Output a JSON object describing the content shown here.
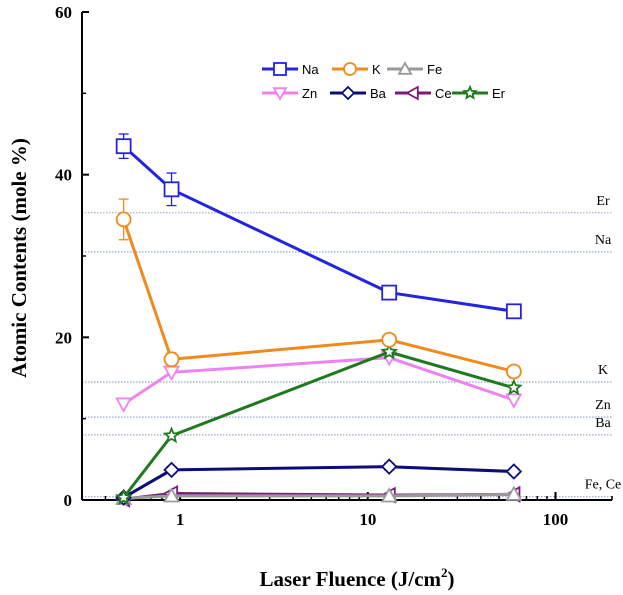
{
  "chart_data": {
    "type": "line",
    "xlabel": "Laser Fluence (J/cm",
    "xlabel_sup": "2",
    "xlabel_close": ")",
    "ylabel": "Atomic Contents (mole %)",
    "xscale": "log",
    "xlim": [
      0.3,
      200
    ],
    "ylim": [
      0,
      60
    ],
    "x_ticks": [
      {
        "value": 1,
        "label": "1"
      },
      {
        "value": 10,
        "label": "10"
      },
      {
        "value": 100,
        "label": "100"
      }
    ],
    "y_ticks": [
      {
        "value": 0,
        "label": "0"
      },
      {
        "value": 20,
        "label": "20"
      },
      {
        "value": 40,
        "label": "40"
      },
      {
        "value": 60,
        "label": "60"
      }
    ],
    "legend_position": "top-right",
    "series": [
      {
        "name": "Na",
        "color": "#2323e0",
        "marker": "square",
        "x": [
          0.5,
          0.9,
          13,
          60
        ],
        "y": [
          43.5,
          38.2,
          25.5,
          23.2
        ],
        "err": [
          1.5,
          2.0,
          0.8,
          0.6
        ]
      },
      {
        "name": "K",
        "color": "#f08a1e",
        "marker": "circle",
        "x": [
          0.5,
          0.9,
          13,
          60
        ],
        "y": [
          34.5,
          17.3,
          19.7,
          15.8
        ],
        "err": [
          2.5,
          0.8,
          0.6,
          0.6
        ]
      },
      {
        "name": "Fe",
        "color": "#9a9a9a",
        "marker": "triangle-up",
        "x": [
          0.5,
          0.9,
          13,
          60
        ],
        "y": [
          0.2,
          0.5,
          0.5,
          0.7
        ],
        "err": [
          0,
          0,
          0,
          0
        ]
      },
      {
        "name": "Zn",
        "color": "#ee82ee",
        "marker": "triangle-down",
        "x": [
          0.5,
          0.9,
          13,
          60
        ],
        "y": [
          11.8,
          15.7,
          17.5,
          12.3
        ],
        "err": [
          0,
          0,
          0,
          0
        ]
      },
      {
        "name": "Ba",
        "color": "#0d0d7a",
        "marker": "diamond",
        "x": [
          0.5,
          0.9,
          13,
          60
        ],
        "y": [
          0.3,
          3.7,
          4.1,
          3.5
        ],
        "err": [
          0,
          0.4,
          0.4,
          0.4
        ]
      },
      {
        "name": "Ce",
        "color": "#7a1a7a",
        "marker": "triangle-left",
        "x": [
          0.5,
          0.9,
          13,
          60
        ],
        "y": [
          0.1,
          0.8,
          0.6,
          0.7
        ],
        "err": [
          0,
          0,
          0,
          0
        ]
      },
      {
        "name": "Er",
        "color": "#1f7a1f",
        "marker": "star",
        "x": [
          0.5,
          0.9,
          13,
          60
        ],
        "y": [
          0.3,
          7.9,
          18.2,
          13.8
        ],
        "err": [
          0,
          0,
          0,
          0
        ]
      }
    ],
    "reference_lines": [
      {
        "y": 35.3,
        "label": "Er"
      },
      {
        "y": 30.5,
        "label": "Na"
      },
      {
        "y": 14.5,
        "label": "K"
      },
      {
        "y": 10.2,
        "label": "Zn"
      },
      {
        "y": 8.0,
        "label": "Ba"
      },
      {
        "y": 0.4,
        "label": "Fe, Ce"
      }
    ],
    "reference_line_color": "#6a7fc8"
  }
}
